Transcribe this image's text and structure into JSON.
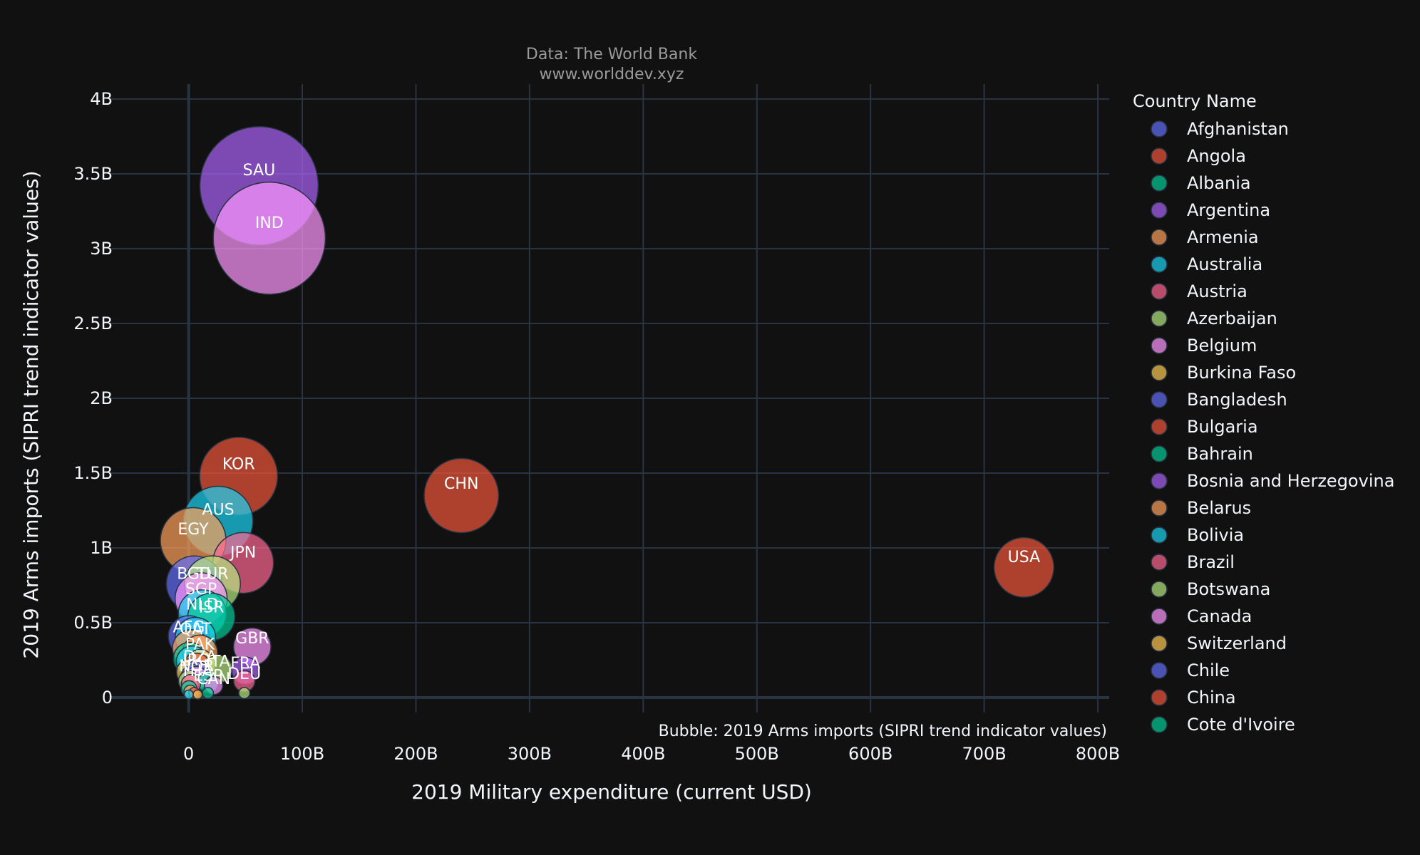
{
  "chart_data": {
    "type": "scatter",
    "title": "",
    "subtitle": [
      "Data: The World Bank",
      "www.worlddev.xyz"
    ],
    "xlabel": "2019 Military expenditure (current USD)",
    "ylabel": "2019 Arms imports (SIPRI trend indicator values)",
    "bubble_note": "Bubble: 2019 Arms imports (SIPRI trend indicator values)",
    "xlim": [
      -70000000000,
      810000000000
    ],
    "ylim": [
      -100000000,
      4100000000
    ],
    "x_ticks": [
      0,
      100000000000,
      200000000000,
      300000000000,
      400000000000,
      500000000000,
      600000000000,
      700000000000,
      800000000000
    ],
    "x_tick_labels": [
      "0",
      "100B",
      "200B",
      "300B",
      "400B",
      "500B",
      "600B",
      "700B",
      "800B"
    ],
    "y_ticks": [
      0,
      500000000,
      1000000000,
      1500000000,
      2000000000,
      2500000000,
      3000000000,
      3500000000,
      4000000000
    ],
    "y_tick_labels": [
      "0",
      "0.5B",
      "1B",
      "1.5B",
      "2B",
      "2.5B",
      "3B",
      "3.5B",
      "4B"
    ],
    "grid": true,
    "legend_position": "right",
    "legend_title": "Country Name",
    "legend": [
      {
        "name": "Afghanistan",
        "color": "#636efa"
      },
      {
        "name": "Angola",
        "color": "#EF553B"
      },
      {
        "name": "Albania",
        "color": "#00cc96"
      },
      {
        "name": "Argentina",
        "color": "#ab63fa"
      },
      {
        "name": "Armenia",
        "color": "#FFA15A"
      },
      {
        "name": "Australia",
        "color": "#19d3f3"
      },
      {
        "name": "Austria",
        "color": "#FF6692"
      },
      {
        "name": "Azerbaijan",
        "color": "#B6E880"
      },
      {
        "name": "Belgium",
        "color": "#FF97FF"
      },
      {
        "name": "Burkina Faso",
        "color": "#FECB52"
      },
      {
        "name": "Bangladesh",
        "color": "#636efa"
      },
      {
        "name": "Bulgaria",
        "color": "#EF553B"
      },
      {
        "name": "Bahrain",
        "color": "#00cc96"
      },
      {
        "name": "Bosnia and Herzegovina",
        "color": "#ab63fa"
      },
      {
        "name": "Belarus",
        "color": "#FFA15A"
      },
      {
        "name": "Bolivia",
        "color": "#19d3f3"
      },
      {
        "name": "Brazil",
        "color": "#FF6692"
      },
      {
        "name": "Botswana",
        "color": "#B6E880"
      },
      {
        "name": "Canada",
        "color": "#FF97FF"
      },
      {
        "name": "Switzerland",
        "color": "#FECB52"
      },
      {
        "name": "Chile",
        "color": "#636efa"
      },
      {
        "name": "China",
        "color": "#EF553B"
      },
      {
        "name": "Cote d'Ivoire",
        "color": "#00cc96"
      }
    ],
    "points": [
      {
        "label": "SAU",
        "x": 62000000000,
        "y": 3420000000,
        "color": "#ab63fa"
      },
      {
        "label": "IND",
        "x": 71000000000,
        "y": 3070000000,
        "color": "#FF97FF"
      },
      {
        "label": "KOR",
        "x": 44000000000,
        "y": 1480000000,
        "color": "#EF553B"
      },
      {
        "label": "CHN",
        "x": 240000000000,
        "y": 1350000000,
        "color": "#EF553B"
      },
      {
        "label": "AUS",
        "x": 26000000000,
        "y": 1180000000,
        "color": "#19d3f3"
      },
      {
        "label": "EGY",
        "x": 4000000000,
        "y": 1050000000,
        "color": "#FFA15A"
      },
      {
        "label": "JPN",
        "x": 48000000000,
        "y": 900000000,
        "color": "#FF6692"
      },
      {
        "label": "USA",
        "x": 735000000000,
        "y": 870000000,
        "color": "#EF553B"
      },
      {
        "label": "BGD",
        "x": 5000000000,
        "y": 760000000,
        "color": "#636efa"
      },
      {
        "label": "TUR",
        "x": 21000000000,
        "y": 760000000,
        "color": "#B6E880"
      },
      {
        "label": "SGP",
        "x": 11000000000,
        "y": 660000000,
        "color": "#FF97FF"
      },
      {
        "label": "ISR",
        "x": 20000000000,
        "y": 540000000,
        "color": "#00cc96"
      },
      {
        "label": "NLD",
        "x": 12000000000,
        "y": 560000000,
        "color": "#19d3f3"
      },
      {
        "label": "AFG",
        "x": 200000000,
        "y": 410000000,
        "color": "#636efa"
      },
      {
        "label": "QAT",
        "x": 6000000000,
        "y": 400000000,
        "color": "#19d3f3"
      },
      {
        "label": "GBR",
        "x": 56000000000,
        "y": 340000000,
        "color": "#FF97FF"
      },
      {
        "label": "FRA",
        "x": 50000000000,
        "y": 180000000,
        "color": "#ab63fa"
      },
      {
        "label": "DEU",
        "x": 49000000000,
        "y": 110000000,
        "color": "#FF6692"
      },
      {
        "label": "ESP",
        "x": 17000000000,
        "y": 100000000,
        "color": "#00cc96"
      },
      {
        "label": "PAK",
        "x": 10000000000,
        "y": 300000000,
        "color": "#FFA15A"
      },
      {
        "label": "ITA",
        "x": 26000000000,
        "y": 190000000,
        "color": "#B6E880"
      },
      {
        "label": "DZA",
        "x": 10000000000,
        "y": 220000000,
        "color": "#FECB52"
      },
      {
        "label": "IRQ",
        "x": 7000000000,
        "y": 200000000,
        "color": "#EF553B"
      },
      {
        "label": "NOR",
        "x": 7000000000,
        "y": 160000000,
        "color": "#636efa"
      },
      {
        "label": "THA",
        "x": 7000000000,
        "y": 130000000,
        "color": "#FF97FF"
      },
      {
        "label": "CAN",
        "x": 22000000000,
        "y": 80000000,
        "color": "#FF97FF"
      },
      {
        "label": "",
        "x": 2000000000,
        "y": 330000000,
        "color": "#FFA15A"
      },
      {
        "label": "",
        "x": 1000000000,
        "y": 260000000,
        "color": "#00cc96"
      },
      {
        "label": "",
        "x": 3000000000,
        "y": 240000000,
        "color": "#19d3f3"
      },
      {
        "label": "",
        "x": 1000000000,
        "y": 170000000,
        "color": "#FECB52"
      },
      {
        "label": "",
        "x": 4000000000,
        "y": 140000000,
        "color": "#636efa"
      },
      {
        "label": "",
        "x": 500000000,
        "y": 110000000,
        "color": "#B6E880"
      },
      {
        "label": "",
        "x": 2000000000,
        "y": 90000000,
        "color": "#FF6692"
      },
      {
        "label": "",
        "x": 300000000,
        "y": 60000000,
        "color": "#00cc96"
      },
      {
        "label": "",
        "x": 1500000000,
        "y": 40000000,
        "color": "#FFA15A"
      },
      {
        "label": "",
        "x": 5000000000,
        "y": 30000000,
        "color": "#EF553B"
      },
      {
        "label": "",
        "x": 17000000000,
        "y": 30000000,
        "color": "#00cc96"
      },
      {
        "label": "",
        "x": 49000000000,
        "y": 30000000,
        "color": "#B6E880"
      },
      {
        "label": "",
        "x": 100000000,
        "y": 20000000,
        "color": "#19d3f3"
      },
      {
        "label": "",
        "x": 8000000000,
        "y": 20000000,
        "color": "#FECB52"
      }
    ]
  }
}
